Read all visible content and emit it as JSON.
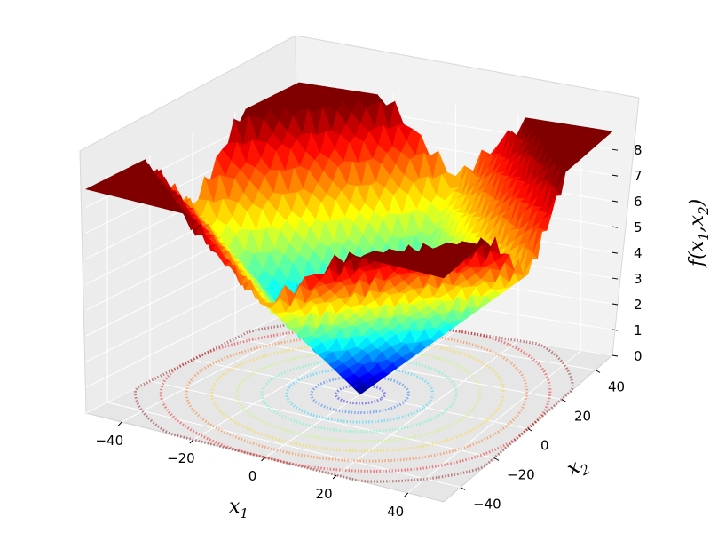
{
  "chart_data": {
    "type": "surface3d",
    "xlabel": "x",
    "xlabel_sub": "1",
    "ylabel": "x",
    "ylabel_sub": "2",
    "zlabel_parts": [
      "f(x",
      "1",
      ",x",
      "2",
      ")"
    ],
    "x_ticks": [
      "−40",
      "−20",
      "0",
      "20",
      "40"
    ],
    "x_tick_values": [
      -40,
      -20,
      0,
      20,
      40
    ],
    "y_ticks": [
      "−40",
      "−20",
      "0",
      "20",
      "40"
    ],
    "y_tick_values": [
      -40,
      -20,
      0,
      20,
      40
    ],
    "z_ticks": [
      "0",
      "1",
      "2",
      "3",
      "4",
      "5",
      "6",
      "7",
      "8"
    ],
    "z_tick_values": [
      0,
      1,
      2,
      3,
      4,
      5,
      6,
      7,
      8
    ],
    "xlim": [
      -50,
      50
    ],
    "ylim": [
      -50,
      50
    ],
    "zlim": [
      0,
      8.8
    ],
    "colormap": "jet",
    "contour_offset": 0,
    "grid": true,
    "surface_center_value": 0,
    "surface_edge_mid_value": 6,
    "surface_corner_value": 8.5
  }
}
